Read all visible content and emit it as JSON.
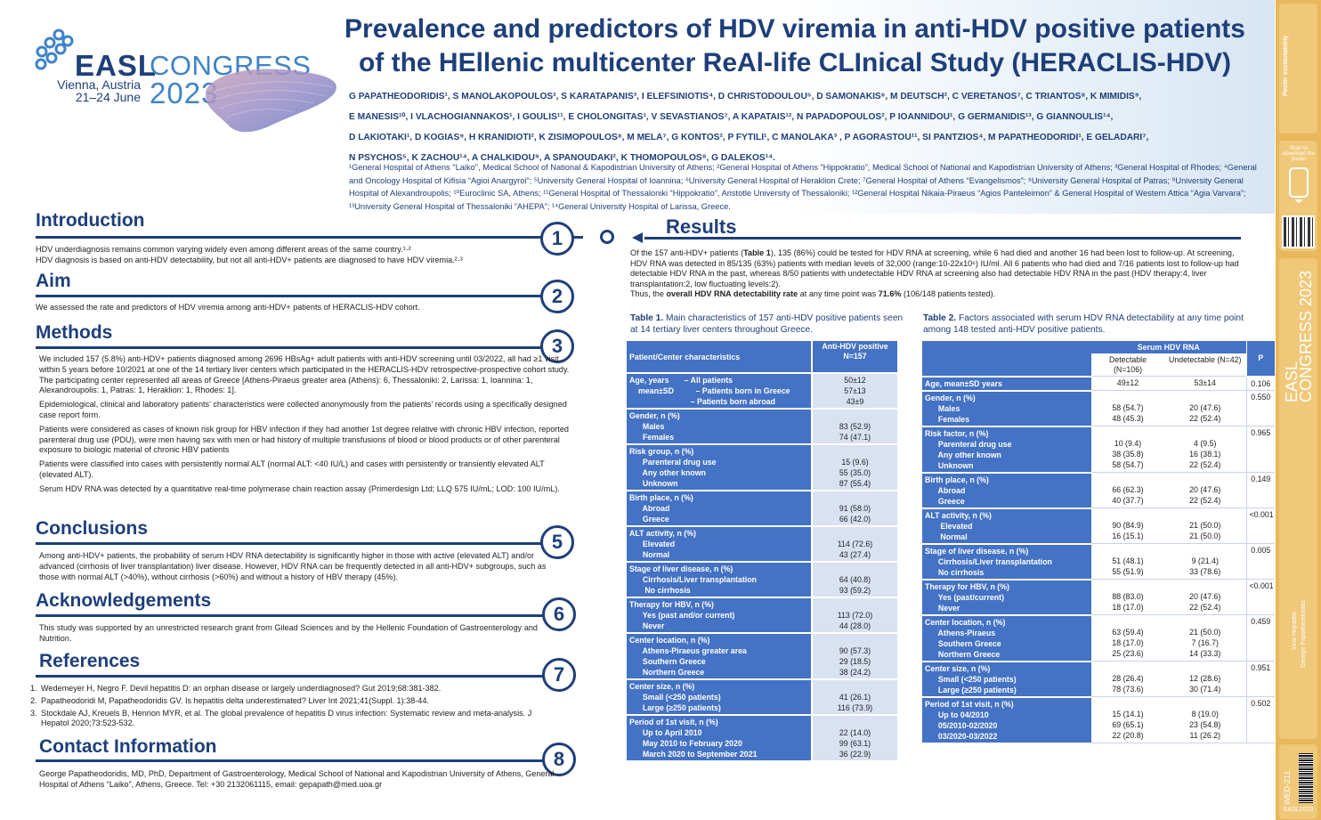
{
  "header": {
    "logo": {
      "easl": "EASL",
      "congress": "CONGRESS",
      "city": "Vienna, Austria",
      "dates": "21–24 June",
      "year": "2023"
    },
    "title_line1": "Prevalence and predictors of HDV viremia in anti-HDV positive patients",
    "title_line2": "of the HEllenic multicenter ReAl-life CLInical Study (HERACLIS-HDV)",
    "authors_lines": [
      "G PAPATHEODORIDIS¹, S MANOLAKOPOULOS², S KARATAPANIS³, I ELEFSINIOTIS⁴, D CHRISTODOULOU⁵, D SAMONAKIS⁶, M DEUTSCH², C VERETANOS⁷, C TRIANTOS⁸, K MIMIDIS⁹,",
      "E MANESIS¹⁰, I VLACHOGIANNAKOS¹, I GOULIS¹¹, E CHOLONGITAS¹, V SEVASTIANOS⁷, A KAPATAIS¹², N PAPADOPOULOS², P IOANNIDOU¹, G GERMANIDIS¹³, G GIANNOULIS¹⁴,",
      "D LAKIOTAKI¹, D KOGIAS⁹, H KRANIDIOTI², K ZISIMOPOULOS⁸, M MELA⁷, G KONTOS², P FYTILI¹, C MANOLAKA³ , P AGORASTOU¹¹, SI PANTZIOS⁴, M PAPATHEODORIDI¹, E GELADARI⁷,",
      "N PSYCHOS⁵, K ZACHOU¹⁴, A CHALKIDOU⁹, A SPANOUDAKI², K THOMOPOULOS⁸, G DALEKOS¹⁴."
    ],
    "affiliations": "¹General Hospital of Athens \"Laiko\", Medical School of National & Kapodistrian University of Athens; ²General Hospital of Athens “Hippokratio”, Medical School of National and Kapodistrian University of Athens; ³General Hospital of Rhodes; ⁴General and Oncology Hospital of Kifisia “Agioi Anargyroi”; ⁵University General Hospital of Ioannina; ⁶University General Hospital of Heraklion Crete; ⁷General Hospital of Athens “Evangelismos”; ⁸University General Hospital of Patras; ⁹University General Hospital of Alexandroupolis; ¹⁰Euroclinic SA, Athens; ¹¹General Hospital of Thessaloniki “Hippokratio”, Aristotle University of Thessaloniki; ¹²General Hospital Nikaia-Piraeus “Agios Panteleimon” & General Hospital of Western Attica “Agia Varvara”; ¹³University General Hospital of Thessaloniki “AHEPA”; ¹⁴General University Hospital of Larissa, Greece."
  },
  "sidebar": {
    "poster_sustain": "Poster sustainability",
    "scan": "Scan to download the poster",
    "congress_vert": "EASL CONGRESS 2023",
    "topic": "Viral Hepatitis",
    "author": "George Papatheodoridis",
    "code": "WED-211",
    "badge": "EASL2023"
  },
  "sections": {
    "introduction": {
      "heading": "Introduction",
      "num": "1",
      "lines": [
        "HDV underdiagnosis remains common varying widely even among different areas of the same country.¹·²",
        "HDV diagnosis is based on anti-HDV detectability, but not all anti-HDV+ patients are diagnosed to have HDV viremia.²·³"
      ]
    },
    "aim": {
      "heading": "Aim",
      "num": "2",
      "text": "We assessed the rate and predictors of HDV viremia among anti-HDV+ patients of HERACLIS-HDV cohort."
    },
    "methods": {
      "heading": "Methods",
      "num": "3",
      "paras": [
        "We included 157 (5.8%) anti-HDV+ patients diagnosed among 2696 HBsAg+ adult patients with anti-HDV screening until 03/2022, all had ≥1 visit within 5 years before 10/2021 at one of the 14 tertiary liver centers which participated in the HERACLIS-HDV retrospective-prospective cohort study. The participating center represented all areas of Greece [Athens-Piraeus greater area (Athens): 6, Thessaloniki: 2, Larissa: 1, Ioannina: 1, Alexandroupolis: 1, Patras: 1, Heraklion: 1, Rhodes: 1].",
        "Epidemiological, clinical and laboratory patients' characteristics were collected anonymously from the patients' records using a specifically designed case report form.",
        "Patients were considered as cases of known risk group for HBV infection if they had another 1st degree relative with chronic HBV infection, reported parenteral drug use (PDU), were men having sex with men or had history of multiple transfusions of blood or blood products or of other parenteral exposure to biologic material of chronic HBV patients",
        "Patients were classified into cases with persistently normal ALT (normal ALT: <40 IU/L) and cases with persistently or transiently elevated ALT (elevated ALT).",
        "Serum HDV RNA was detected by a quantitative real-time polymerase chain reaction assay (Primerdesign Ltd; LLQ 575 IU/mL; LOD: 100 IU/mL)."
      ]
    },
    "conclusions": {
      "heading": "Conclusions",
      "num": "5",
      "text": "Among anti-HDV+ patients, the probability of serum HDV RNA detectability is significantly higher in those with active (elevated ALT) and/or advanced (cirrhosis of liver transplantation) liver disease. However, HDV RNA can be frequently detected in all anti-HDV+ subgroups, such as those with normal ALT (>40%), without cirrhosis (>60%) and without a history of HBV therapy (45%)."
    },
    "acknowledgements": {
      "heading": "Acknowledgements",
      "num": "6",
      "text": "This study was supported by an unrestricted research grant from Gilead Sciences and by the Hellenic Foundation of Gastroenterology and Nutrition."
    },
    "references": {
      "heading": "References",
      "num": "7",
      "items": [
        "Wedemeyer H, Negro F. Devil hepatitis D: an orphan disease or largely underdiagnosed? Gut 2019;68:381-382.",
        "Papatheodoridi M, Papatheodoridis GV. Is hepatitis delta underestimated? Liver Int 2021;41(Suppl. 1):38-44.",
        "Stockdale AJ, Kreuels B, Henrion MYR, et al. The global prevalence of hepatitis D virus infection: Systematic review and meta-analysis. J Hepatol 2020;73:523-532."
      ]
    },
    "contact": {
      "heading": "Contact Information",
      "num": "8",
      "text": "George Papatheodoridis, MD, PhD, Department of Gastroenterology, Medical School of National and Kapodistrian University of Athens, General Hospital of Athens “Laiko”, Athens, Greece. Tel: +30 2132061115, email: gepapath@med.uoa.gr"
    },
    "results": {
      "heading": "Results",
      "p1_pre": "Of the 157 anti-HDV+ patients (",
      "p1_bold": "Table 1",
      "p1_post": "), 135 (86%) could be tested for HDV RNA at screening, while 6 had died and another 16 had been lost to follow-up. At screening, HDV RNA was detected in 85/135 (63%) patients with median levels of 32,000 (range:10-22x10⁶) IU/ml. All 6 patients who had died and 7/16 patients lost to follow-up had detectable HDV RNA in the past, whereas 8/50 patients with undetectable HDV RNA at screening also had detectable HDV RNA in the past (HDV therapy:4, liver transplantation:2, low fluctuating levels:2).",
      "p2_pre": "Thus, the ",
      "p2_bold": "overall HDV RNA detectability rate",
      "p2_post": " at any time point was ",
      "p2_bold2": "71.6%",
      "p2_end": " (106/148 patients tested)."
    }
  },
  "table1": {
    "caption_bold": "Table 1.",
    "caption": " Main characteristics of 157 anti-HDV positive patients seen at 14 tertiary liver centers throughout Greece.",
    "head_char": "Patient/Center characteristics",
    "head_val": "Anti-HDV positive N=157",
    "rows": [
      {
        "label": [
          "Age, years       – All patients",
          "mean±SD          – Patients born in Greece",
          "                        – Patients born abroad"
        ],
        "values": [
          "50±12",
          "57±13",
          "43±9"
        ]
      },
      {
        "label": [
          "Gender, n (%)",
          "  Males",
          "  Females"
        ],
        "values": [
          "",
          "83 (52.9)",
          "74 (47.1)"
        ]
      },
      {
        "label": [
          "Risk group, n (%)",
          "  Parenteral drug use",
          "  Any other known",
          "  Unknown"
        ],
        "values": [
          "",
          "15 (9.6)",
          "55 (35.0)",
          "87 (55.4)"
        ]
      },
      {
        "label": [
          "Birth place, n (%)",
          "  Abroad",
          "  Greece"
        ],
        "values": [
          "",
          "91 (58.0)",
          "66 (42.0)"
        ]
      },
      {
        "label": [
          "ALT activity, n (%)",
          "  Elevated",
          "  Normal"
        ],
        "values": [
          "",
          "114 (72.6)",
          "43 (27.4)"
        ]
      },
      {
        "label": [
          "Stage of liver disease, n (%)",
          "  Cirrhosis/Liver transplantation",
          "   No cirrhosis"
        ],
        "values": [
          "",
          "64 (40.8)",
          "93 (59.2)"
        ]
      },
      {
        "label": [
          "Therapy for HBV, n (%)",
          "  Yes (past and/or current)",
          "  Never"
        ],
        "values": [
          "",
          "113 (72.0)",
          "44 (28.0)"
        ]
      },
      {
        "label": [
          "Center location, n (%)",
          "  Athens-Piraeus greater area",
          "  Southern Greece",
          "  Northern Greece"
        ],
        "values": [
          "",
          "90 (57.3)",
          "29 (18.5)",
          "38 (24.2)"
        ]
      },
      {
        "label": [
          "Center size, n (%)",
          "  Small (<250 patients)",
          "  Large (≥250 patients)"
        ],
        "values": [
          "",
          "41 (26.1)",
          "116 (73.9)"
        ]
      },
      {
        "label": [
          "Period of 1st visit, n (%)",
          "  Up to April 2010",
          "  May 2010 to February 2020",
          "  March 2020 to September 2021"
        ],
        "values": [
          "",
          "22 (14.0)",
          "99 (63.1)",
          "36 (22.9)"
        ]
      }
    ]
  },
  "table2": {
    "caption_bold": "Table 2.",
    "caption": " Factors associated with serum HDV RNA detectability at any time point among 148 tested anti-HDV positive patients.",
    "head_group": "Serum HDV RNA",
    "head_det": "Detectable (N=106)",
    "head_undet": "Undetectable (N=42)",
    "head_p": "P",
    "rows": [
      {
        "label": [
          "Age, mean±SD years"
        ],
        "det": [
          "49±12"
        ],
        "undet": [
          "53±14"
        ],
        "p": "0.106"
      },
      {
        "label": [
          "Gender, n (%)",
          "  Males",
          "  Females"
        ],
        "det": [
          "",
          "58 (54.7)",
          "48 (45.3)"
        ],
        "undet": [
          "",
          "20 (47.6)",
          "22 (52.4)"
        ],
        "p": "0.550"
      },
      {
        "label": [
          "Risk factor, n (%)",
          "  Parenteral drug use",
          "  Any other known",
          "  Unknown"
        ],
        "det": [
          "",
          "10 (9.4)",
          "38 (35.8)",
          "58 (54.7)"
        ],
        "undet": [
          "",
          "4 (9.5)",
          "16 (38.1)",
          "22 (52.4)"
        ],
        "p": "0.965"
      },
      {
        "label": [
          "Birth place, n (%)",
          "  Abroad",
          "  Greece"
        ],
        "det": [
          "",
          "66 (62.3)",
          "40 (37.7)"
        ],
        "undet": [
          "",
          "20 (47.6)",
          "22 (52.4)"
        ],
        "p": "0.149"
      },
      {
        "label": [
          "ALT activity, n (%)",
          "   Elevated",
          "   Normal"
        ],
        "det": [
          "",
          "90 (84.9)",
          "16 (15.1)"
        ],
        "undet": [
          "",
          "21 (50.0)",
          "21 (50.0)"
        ],
        "p": "<0.001"
      },
      {
        "label": [
          "Stage of liver disease, n (%)",
          "  Cirrhosis/Liver transplantation",
          "  No cirrhosis"
        ],
        "det": [
          "",
          "51 (48.1)",
          "55 (51.9)"
        ],
        "undet": [
          "",
          "9 (21.4)",
          "33 (78.6)"
        ],
        "p": "0.005"
      },
      {
        "label": [
          "Therapy for HBV, n (%)",
          "  Yes (past/current)",
          "  Never"
        ],
        "det": [
          "",
          "88 (83.0)",
          "18 (17.0)"
        ],
        "undet": [
          "",
          "20 (47.6)",
          "22 (52.4)"
        ],
        "p": "<0.001"
      },
      {
        "label": [
          "Center location, n (%)",
          "  Athens-Piraeus",
          "  Southern Greece",
          "  Northern Greece"
        ],
        "det": [
          "",
          "63 (59.4)",
          "18 (17.0)",
          "25 (23.6)"
        ],
        "undet": [
          "",
          "21 (50.0)",
          "7 (16.7)",
          "14 (33.3)"
        ],
        "p": "0.459"
      },
      {
        "label": [
          "Center size, n (%)",
          "  Small (<250 patients)",
          "  Large (≥250 patients)"
        ],
        "det": [
          "",
          "28 (26.4)",
          "78 (73.6)"
        ],
        "undet": [
          "",
          "12 (28.6)",
          "30 (71.4)"
        ],
        "p": "0.951"
      },
      {
        "label": [
          "Period of 1st visit, n (%)",
          "  Up to 04/2010",
          "  05/2010-02/2020",
          "  03/2020-03/2022"
        ],
        "det": [
          "",
          "15 (14.1)",
          "69 (65.1)",
          "22 (20.8)"
        ],
        "undet": [
          "",
          "8 (19.0)",
          "23 (54.8)",
          "11 (26.2)"
        ],
        "p": "0.502"
      }
    ]
  },
  "colors": {
    "navy": "#1e3f7a",
    "table_blue": "#4472c4",
    "sidebar_gold": "#e8b85a"
  }
}
